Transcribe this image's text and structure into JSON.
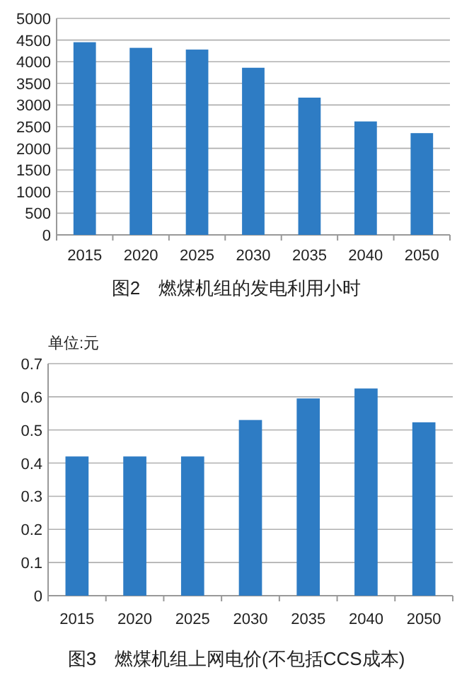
{
  "chart_data": [
    {
      "type": "bar",
      "title": "图2　燃煤机组的发电利用小时",
      "categories": [
        "2015",
        "2020",
        "2025",
        "2030",
        "2035",
        "2040",
        "2050"
      ],
      "values": [
        4450,
        4320,
        4280,
        3860,
        3170,
        2620,
        2350
      ],
      "color": "#2e7cc4",
      "ylim": [
        0,
        5000
      ],
      "yticks": [
        0,
        500,
        1000,
        1500,
        2000,
        2500,
        3000,
        3500,
        4000,
        4500,
        5000
      ],
      "grid": "y"
    },
    {
      "type": "bar",
      "title": "图3　燃煤机组上网电价(不包括CCS成本)",
      "ylabel": "单位:元",
      "categories": [
        "2015",
        "2020",
        "2025",
        "2030",
        "2035",
        "2040",
        "2050"
      ],
      "values": [
        0.42,
        0.42,
        0.42,
        0.53,
        0.595,
        0.625,
        0.523
      ],
      "color": "#2e7cc4",
      "ylim": [
        0,
        0.7
      ],
      "yticks": [
        0,
        0.1,
        0.2,
        0.3,
        0.4,
        0.5,
        0.6,
        0.7
      ],
      "grid": "y"
    }
  ]
}
